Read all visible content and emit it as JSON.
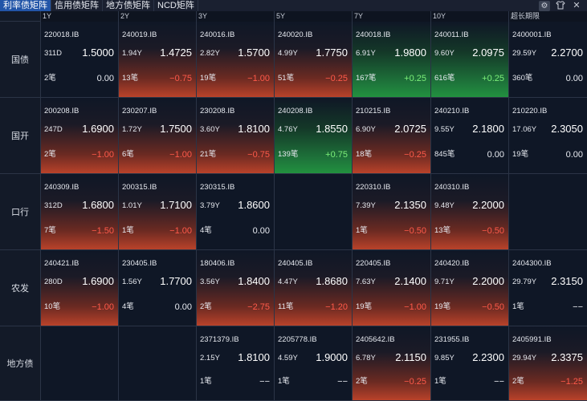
{
  "tabs": [
    {
      "label": "利率债矩阵",
      "active": true
    },
    {
      "label": "信用债矩阵",
      "active": false
    },
    {
      "label": "地方债矩阵",
      "active": false
    },
    {
      "label": "NCD矩阵",
      "active": false
    }
  ],
  "columns": [
    "1Y",
    "2Y",
    "3Y",
    "5Y",
    "7Y",
    "10Y",
    "超长期限"
  ],
  "rows": [
    {
      "label": "国债",
      "cells": [
        {
          "code": "220018.IB",
          "term": "311D",
          "yield": "1.5000",
          "count": "2笔",
          "change": "0.00",
          "style": "neutral",
          "sign": "zero"
        },
        {
          "code": "240019.IB",
          "term": "1.94Y",
          "yield": "1.4725",
          "count": "13笔",
          "change": "−0.75",
          "style": "red",
          "sign": "neg"
        },
        {
          "code": "240016.IB",
          "term": "2.82Y",
          "yield": "1.5700",
          "count": "19笔",
          "change": "−1.00",
          "style": "red",
          "sign": "neg"
        },
        {
          "code": "240020.IB",
          "term": "4.99Y",
          "yield": "1.7750",
          "count": "51笔",
          "change": "−0.25",
          "style": "red",
          "sign": "neg"
        },
        {
          "code": "240018.IB",
          "term": "6.91Y",
          "yield": "1.9800",
          "count": "167笔",
          "change": "+0.25",
          "style": "green",
          "sign": "pos"
        },
        {
          "code": "240011.IB",
          "term": "9.60Y",
          "yield": "2.0975",
          "count": "616笔",
          "change": "+0.25",
          "style": "green",
          "sign": "pos"
        },
        {
          "code": "2400001.IB",
          "term": "29.59Y",
          "yield": "2.2700",
          "count": "360笔",
          "change": "0.00",
          "style": "neutral",
          "sign": "zero"
        }
      ]
    },
    {
      "label": "国开",
      "cells": [
        {
          "code": "200208.IB",
          "term": "247D",
          "yield": "1.6900",
          "count": "2笔",
          "change": "−1.00",
          "style": "red",
          "sign": "neg"
        },
        {
          "code": "230207.IB",
          "term": "1.72Y",
          "yield": "1.7500",
          "count": "6笔",
          "change": "−1.00",
          "style": "red",
          "sign": "neg"
        },
        {
          "code": "230208.IB",
          "term": "3.60Y",
          "yield": "1.8100",
          "count": "21笔",
          "change": "−0.75",
          "style": "red",
          "sign": "neg"
        },
        {
          "code": "240208.IB",
          "term": "4.76Y",
          "yield": "1.8550",
          "count": "139笔",
          "change": "+0.75",
          "style": "green",
          "sign": "pos"
        },
        {
          "code": "210215.IB",
          "term": "6.90Y",
          "yield": "2.0725",
          "count": "18笔",
          "change": "−0.25",
          "style": "red",
          "sign": "neg"
        },
        {
          "code": "240210.IB",
          "term": "9.55Y",
          "yield": "2.1800",
          "count": "845笔",
          "change": "0.00",
          "style": "neutral",
          "sign": "zero"
        },
        {
          "code": "210220.IB",
          "term": "17.06Y",
          "yield": "2.3050",
          "count": "19笔",
          "change": "0.00",
          "style": "neutral",
          "sign": "zero"
        }
      ]
    },
    {
      "label": "口行",
      "cells": [
        {
          "code": "240309.IB",
          "term": "312D",
          "yield": "1.6800",
          "count": "7笔",
          "change": "−1.50",
          "style": "red",
          "sign": "neg"
        },
        {
          "code": "200315.IB",
          "term": "1.01Y",
          "yield": "1.7100",
          "count": "1笔",
          "change": "−1.00",
          "style": "red",
          "sign": "neg"
        },
        {
          "code": "230315.IB",
          "term": "3.79Y",
          "yield": "1.8600",
          "count": "4笔",
          "change": "0.00",
          "style": "neutral",
          "sign": "zero"
        },
        null,
        {
          "code": "220310.IB",
          "term": "7.39Y",
          "yield": "2.1350",
          "count": "1笔",
          "change": "−0.50",
          "style": "red",
          "sign": "neg"
        },
        {
          "code": "240310.IB",
          "term": "9.48Y",
          "yield": "2.2000",
          "count": "13笔",
          "change": "−0.50",
          "style": "red",
          "sign": "neg"
        },
        null
      ]
    },
    {
      "label": "农发",
      "cells": [
        {
          "code": "240421.IB",
          "term": "280D",
          "yield": "1.6900",
          "count": "10笔",
          "change": "−1.00",
          "style": "red",
          "sign": "neg"
        },
        {
          "code": "230405.IB",
          "term": "1.56Y",
          "yield": "1.7700",
          "count": "4笔",
          "change": "0.00",
          "style": "neutral",
          "sign": "zero"
        },
        {
          "code": "180406.IB",
          "term": "3.56Y",
          "yield": "1.8400",
          "count": "2笔",
          "change": "−2.75",
          "style": "red",
          "sign": "neg"
        },
        {
          "code": "240405.IB",
          "term": "4.47Y",
          "yield": "1.8680",
          "count": "11笔",
          "change": "−1.20",
          "style": "red",
          "sign": "neg"
        },
        {
          "code": "220405.IB",
          "term": "7.63Y",
          "yield": "2.1400",
          "count": "19笔",
          "change": "−1.00",
          "style": "red",
          "sign": "neg"
        },
        {
          "code": "240420.IB",
          "term": "9.71Y",
          "yield": "2.2000",
          "count": "19笔",
          "change": "−0.50",
          "style": "red",
          "sign": "neg"
        },
        {
          "code": "2404300.IB",
          "term": "29.79Y",
          "yield": "2.3150",
          "count": "1笔",
          "change": "−−",
          "style": "neutral",
          "sign": "dash"
        }
      ]
    },
    {
      "label": "地方债",
      "cells": [
        null,
        null,
        {
          "code": "2371379.IB",
          "term": "2.15Y",
          "yield": "1.8100",
          "count": "1笔",
          "change": "−−",
          "style": "neutral",
          "sign": "dash"
        },
        {
          "code": "2205778.IB",
          "term": "4.59Y",
          "yield": "1.9000",
          "count": "1笔",
          "change": "−−",
          "style": "neutral",
          "sign": "dash"
        },
        {
          "code": "2405642.IB",
          "term": "6.78Y",
          "yield": "2.1150",
          "count": "2笔",
          "change": "−0.25",
          "style": "red",
          "sign": "neg"
        },
        {
          "code": "231955.IB",
          "term": "9.85Y",
          "yield": "2.2300",
          "count": "1笔",
          "change": "−−",
          "style": "neutral",
          "sign": "dash"
        },
        {
          "code": "2405991.IB",
          "term": "29.94Y",
          "yield": "2.3375",
          "count": "2笔",
          "change": "−1.25",
          "style": "red",
          "sign": "neg"
        }
      ]
    }
  ],
  "icons": {
    "settings": "gear-icon",
    "shirt": "theme-icon",
    "close": "close-icon"
  }
}
